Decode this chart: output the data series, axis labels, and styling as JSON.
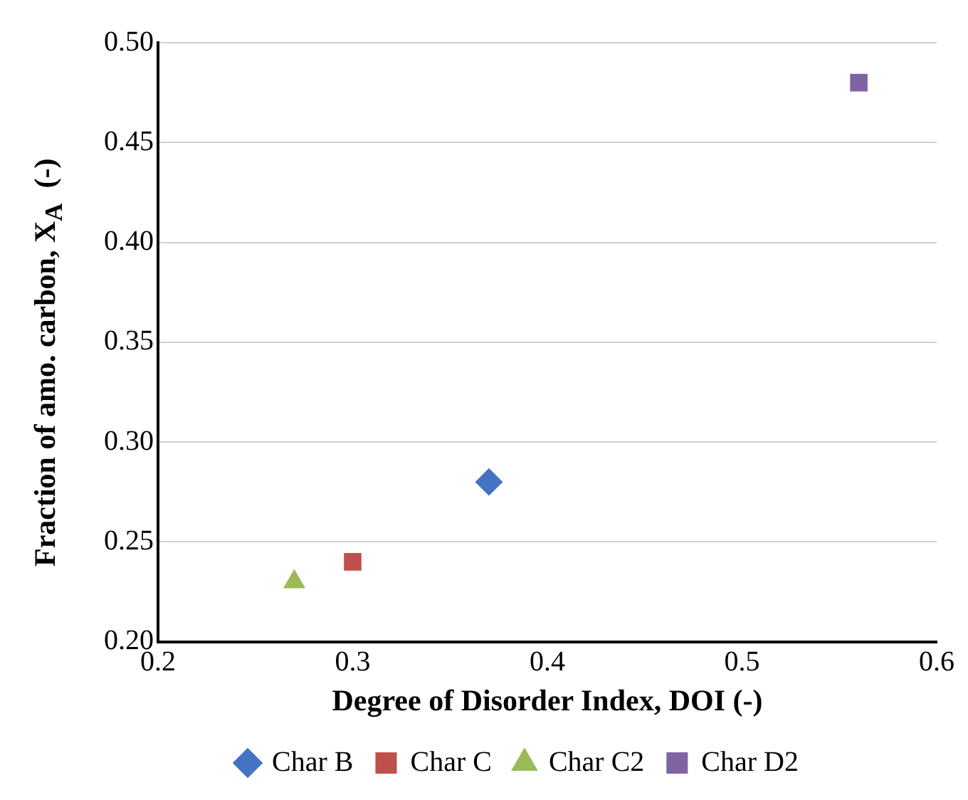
{
  "chart_data": {
    "type": "scatter",
    "xlabel": "Degree of Disorder Index, DOI (-)",
    "ylabel": "Fraction of amo. carbon, X$_{A}$  (-)",
    "xlim": [
      0.2,
      0.6
    ],
    "xticks": [
      0.2,
      0.3,
      0.4,
      0.5,
      0.6
    ],
    "ylim": [
      0.2,
      0.5
    ],
    "yticks": [
      {
        "value": 0.2,
        "label": "0.20"
      },
      {
        "value": 0.25,
        "label": "0.25"
      },
      {
        "value": 0.3,
        "label": "0.30"
      },
      {
        "value": 0.35,
        "label": "0.35"
      },
      {
        "value": 0.4,
        "label": "0.40"
      },
      {
        "value": 0.45,
        "label": "0.45"
      },
      {
        "value": 0.5,
        "label": "0.50"
      }
    ],
    "grid": "y",
    "legend": "bottom",
    "series": [
      {
        "name": "Char B",
        "color": "#4472c4",
        "marker": "diamond",
        "x": [
          0.37
        ],
        "values": [
          0.28
        ]
      },
      {
        "name": "Char C",
        "color": "#c0504d",
        "marker": "square",
        "x": [
          0.3
        ],
        "values": [
          0.24
        ]
      },
      {
        "name": "Char C2",
        "color": "#9bbb59",
        "marker": "triangle",
        "x": [
          0.27
        ],
        "values": [
          0.23
        ]
      },
      {
        "name": "Char D2",
        "color": "#8064a2",
        "marker": "square",
        "x": [
          0.56
        ],
        "values": [
          0.48
        ]
      }
    ]
  }
}
